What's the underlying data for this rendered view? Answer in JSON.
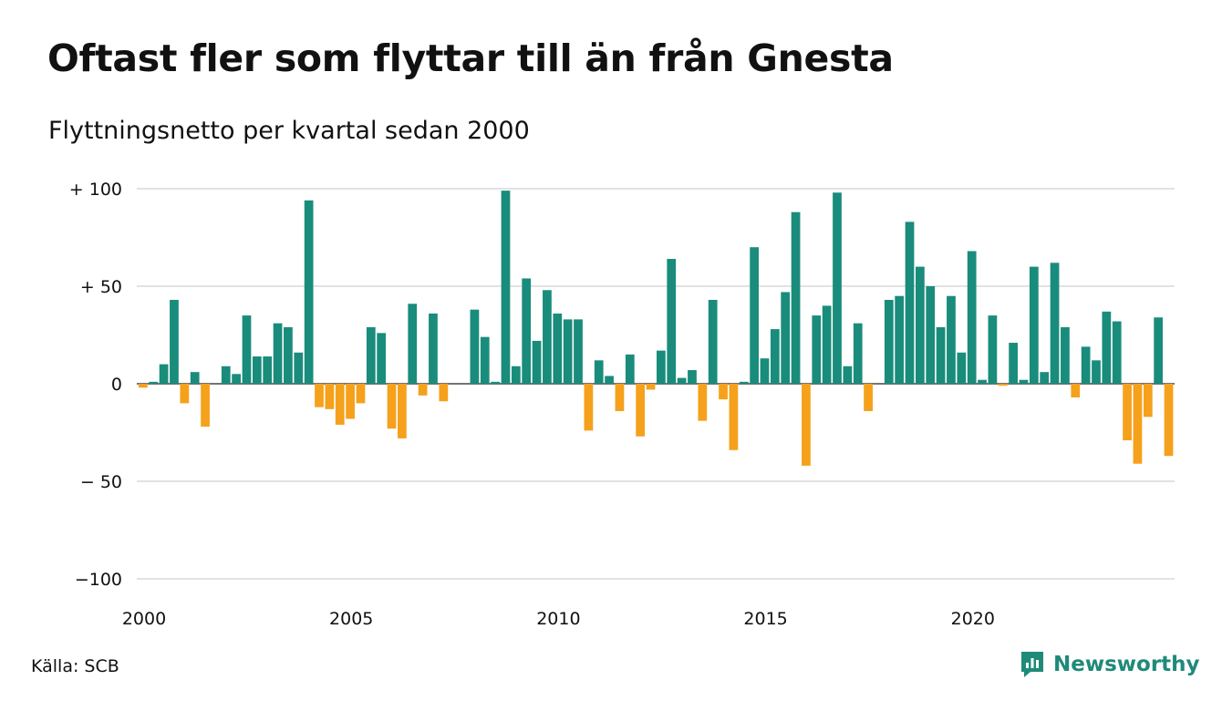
{
  "title": "Oftast fler som flyttar till än från Gnesta",
  "subtitle": "Flyttningsnetto per kvartal sedan 2000",
  "source": "Källa: SCB",
  "brand": {
    "name": "Newsworthy",
    "icon": "newsworthy-logo-icon",
    "color": "#1f8a79"
  },
  "chart_data": {
    "type": "bar",
    "title": "Oftast fler som flyttar till än från Gnesta",
    "subtitle": "Flyttningsnetto per kvartal sedan 2000",
    "xlabel": "",
    "ylabel": "",
    "x_start_year": 2000,
    "periods_per_year": 4,
    "x_ticks": [
      "2000",
      "2005",
      "2010",
      "2015",
      "2020"
    ],
    "y_ticks": [
      {
        "value": 100,
        "label": "+ 100"
      },
      {
        "value": 50,
        "label": "+  50"
      },
      {
        "value": 0,
        "label": "0"
      },
      {
        "value": -50,
        "label": "− 50"
      },
      {
        "value": -100,
        "label": "−100"
      }
    ],
    "ylim": [
      -100,
      100
    ],
    "grid": true,
    "positive_color": "#1a8c7c",
    "negative_color": "#f5a11c",
    "values": [
      -2,
      1,
      10,
      43,
      -10,
      6,
      -22,
      0,
      9,
      5,
      35,
      14,
      14,
      31,
      29,
      16,
      94,
      -12,
      -13,
      -21,
      -18,
      -10,
      29,
      26,
      -23,
      -28,
      41,
      -6,
      36,
      -9,
      0,
      0,
      38,
      24,
      1,
      99,
      9,
      54,
      22,
      48,
      36,
      33,
      33,
      -24,
      12,
      4,
      -14,
      15,
      -27,
      -3,
      17,
      64,
      3,
      7,
      -19,
      43,
      -8,
      -34,
      1,
      70,
      13,
      28,
      47,
      88,
      -42,
      35,
      40,
      98,
      9,
      31,
      -14,
      0,
      43,
      45,
      83,
      60,
      50,
      29,
      45,
      16,
      68,
      2,
      35,
      -1,
      21,
      2,
      60,
      6,
      62,
      29,
      -7,
      19,
      12,
      37,
      32,
      -29,
      -41,
      -17,
      34,
      -37
    ]
  }
}
